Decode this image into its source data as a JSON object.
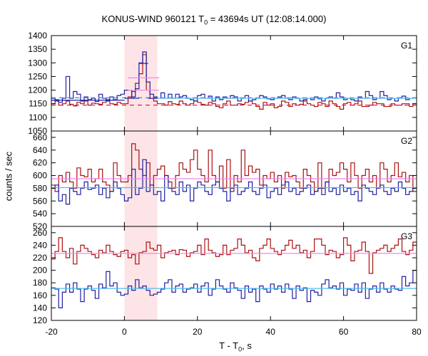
{
  "title": {
    "prefix": "KONUS-WIND 960121 T",
    "sub": "0",
    "suffix": " = 43694s UT (12:08:14.000)"
  },
  "axes": {
    "xlabel": {
      "prefix": "T - T",
      "sub": "0",
      "suffix": ", s"
    },
    "ylabel": "counts / sec"
  },
  "colors": {
    "red_series": "#aa1111",
    "blue_series": "#1f1fa3",
    "red_background": "#dd2255",
    "blue_background": "#3399ee",
    "fit_red": "#ee88ee",
    "fit_blue": "#55bbee",
    "highlight": "#fde4e6"
  },
  "chart_data": [
    {
      "type": "line",
      "panel": "G1",
      "highlight_interval": [
        0,
        9
      ],
      "xlim": [
        -20,
        80
      ],
      "ylim": [
        1050,
        1400
      ],
      "yticks": [
        1050,
        1100,
        1150,
        1200,
        1250,
        1300,
        1350,
        1400
      ],
      "xticks": [
        -20,
        0,
        20,
        40,
        60,
        80
      ],
      "series": [
        {
          "color": "red",
          "step": 1,
          "x_start": -20,
          "values": [
            1150,
            1165,
            1145,
            1150,
            1160,
            1148,
            1142,
            1155,
            1150,
            1160,
            1145,
            1152,
            1150,
            1148,
            1155,
            1165,
            1150,
            1148,
            1155,
            1150,
            1150,
            1175,
            1195,
            1225,
            1260,
            1330,
            1200,
            1170,
            1160,
            1150,
            1150,
            1145,
            1158,
            1150,
            1148,
            1160,
            1150,
            1145,
            1150,
            1160,
            1155,
            1148,
            1145,
            1155,
            1150,
            1140,
            1135,
            1150,
            1160,
            1145,
            1145,
            1150,
            1148,
            1155,
            1160,
            1150,
            1140,
            1130,
            1155,
            1145,
            1150,
            1135,
            1140,
            1160,
            1155,
            1140,
            1150,
            1145,
            1148,
            1160,
            1150,
            1145,
            1140,
            1155,
            1150,
            1140,
            1160,
            1150,
            1140,
            1130,
            1150,
            1155,
            1145,
            1150,
            1160,
            1140,
            1140,
            1145,
            1155,
            1150,
            1150,
            1140,
            1140,
            1150,
            1145,
            1145,
            1150,
            1150,
            1140,
            1150
          ]
        },
        {
          "color": "blue",
          "step": 1,
          "x_start": -20,
          "values": [
            1170,
            1160,
            1155,
            1170,
            1250,
            1170,
            1195,
            1185,
            1160,
            1175,
            1165,
            1170,
            1158,
            1185,
            1170,
            1160,
            1175,
            1165,
            1180,
            1185,
            1200,
            1200,
            1175,
            1205,
            1300,
            1340,
            1230,
            1185,
            1175,
            1170,
            1190,
            1170,
            1185,
            1170,
            1185,
            1175,
            1180,
            1170,
            1165,
            1160,
            1180,
            1185,
            1170,
            1178,
            1160,
            1175,
            1165,
            1175,
            1170,
            1180,
            1175,
            1160,
            1170,
            1180,
            1160,
            1165,
            1170,
            1180,
            1175,
            1168,
            1165,
            1170,
            1175,
            1180,
            1170,
            1165,
            1175,
            1170,
            1160,
            1165,
            1170,
            1165,
            1175,
            1168,
            1160,
            1170,
            1175,
            1170,
            1190,
            1175,
            1165,
            1170,
            1165,
            1160,
            1175,
            1170,
            1195,
            1180,
            1165,
            1170,
            1195,
            1180,
            1165,
            1170,
            1160,
            1172,
            1178,
            1165,
            1170,
            1172
          ]
        }
      ],
      "background_levels": [
        {
          "color": "red",
          "style": "dashed",
          "value": 1145
        },
        {
          "color": "blue",
          "style": "dashed",
          "value": 1172
        }
      ],
      "fits": [
        {
          "color": "blue",
          "style": "solid",
          "x": [
            -20,
            0
          ],
          "value": 1163
        },
        {
          "color": "blue",
          "style": "solid",
          "x": [
            0,
            4
          ],
          "value": 1170
        },
        {
          "color": "blue",
          "style": "solid",
          "x": [
            4,
            6.5
          ],
          "value": 1298
        },
        {
          "color": "blue",
          "style": "solid",
          "x": [
            6.5,
            9
          ],
          "value": 1170
        },
        {
          "color": "fit_red",
          "style": "solid",
          "x": [
            1,
            9.5
          ],
          "value": 1245
        },
        {
          "color": "fit_red",
          "style": "solid",
          "x": [
            1,
            9.5
          ],
          "value": 1200
        },
        {
          "color": "fit_blue",
          "style": "solid",
          "x": [
            9,
            80
          ],
          "value": 1170
        }
      ]
    },
    {
      "type": "line",
      "panel": "G2",
      "highlight_interval": [
        0,
        9
      ],
      "xlim": [
        -20,
        80
      ],
      "ylim": [
        520,
        670
      ],
      "yticks": [
        520,
        540,
        560,
        580,
        600,
        620,
        640,
        660
      ],
      "xticks": [
        -20,
        0,
        20,
        40,
        60,
        80
      ],
      "series": [
        {
          "color": "red",
          "step": 1,
          "x_start": -20,
          "values": [
            585,
            575,
            600,
            590,
            605,
            590,
            580,
            612,
            600,
            598,
            610,
            590,
            595,
            610,
            590,
            585,
            575,
            620,
            600,
            590,
            590,
            600,
            650,
            640,
            610,
            600,
            620,
            585,
            600,
            610,
            615,
            600,
            590,
            580,
            600,
            620,
            610,
            605,
            625,
            640,
            610,
            600,
            590,
            640,
            600,
            590,
            615,
            580,
            625,
            575,
            600,
            590,
            640,
            600,
            615,
            605,
            610,
            585,
            600,
            595,
            605,
            590,
            600,
            580,
            605,
            598,
            600,
            590,
            580,
            610,
            600,
            590,
            575,
            620,
            580,
            590,
            610,
            600,
            605,
            620,
            610,
            590,
            620,
            600,
            580,
            600,
            610,
            590,
            600,
            580,
            620,
            610,
            590,
            600,
            620,
            598,
            605,
            590,
            600,
            575
          ]
        },
        {
          "color": "blue",
          "step": 1,
          "x_start": -20,
          "values": [
            580,
            585,
            560,
            570,
            555,
            580,
            575,
            570,
            580,
            590,
            578,
            580,
            585,
            570,
            580,
            565,
            575,
            590,
            580,
            570,
            560,
            565,
            610,
            570,
            580,
            625,
            575,
            585,
            570,
            575,
            560,
            600,
            580,
            575,
            570,
            590,
            575,
            585,
            560,
            580,
            590,
            585,
            575,
            570,
            585,
            590,
            580,
            575,
            560,
            580,
            585,
            570,
            575,
            580,
            590,
            575,
            570,
            580,
            585,
            565,
            575,
            580,
            570,
            585,
            590,
            575,
            580,
            570,
            575,
            580,
            585,
            570,
            575,
            580,
            570,
            590,
            575,
            580,
            570,
            585,
            575,
            580,
            570,
            575,
            560,
            585,
            580,
            575,
            570,
            580,
            585,
            575,
            570,
            580,
            575,
            590,
            580,
            570,
            575,
            580
          ]
        }
      ],
      "background_levels": [],
      "fits": [
        {
          "color": "fit_red",
          "style": "solid",
          "x": [
            -20,
            80
          ],
          "value": 595
        },
        {
          "color": "fit_blue",
          "style": "solid",
          "x": [
            -20,
            80
          ],
          "value": 581
        }
      ]
    },
    {
      "type": "line",
      "panel": "G3",
      "highlight_interval": [
        0,
        9
      ],
      "xlim": [
        -20,
        80
      ],
      "ylim": [
        120,
        270
      ],
      "yticks": [
        120,
        140,
        160,
        180,
        200,
        220,
        240,
        260
      ],
      "xticks": [
        -20,
        0,
        20,
        40,
        60,
        80
      ],
      "series": [
        {
          "color": "red",
          "step": 1,
          "x_start": -20,
          "values": [
            218,
            230,
            252,
            230,
            220,
            235,
            210,
            230,
            240,
            235,
            230,
            225,
            220,
            232,
            228,
            240,
            230,
            225,
            222,
            230,
            232,
            220,
            225,
            210,
            228,
            230,
            245,
            235,
            232,
            240,
            220,
            228,
            230,
            232,
            225,
            233,
            232,
            222,
            228,
            230,
            240,
            225,
            250,
            232,
            228,
            222,
            225,
            240,
            225,
            232,
            235,
            250,
            240,
            228,
            232,
            220,
            215,
            235,
            240,
            250,
            235,
            230,
            225,
            232,
            240,
            248,
            235,
            240,
            228,
            232,
            220,
            230,
            250,
            250,
            240,
            225,
            232,
            230,
            220,
            225,
            252,
            240,
            215,
            230,
            232,
            245,
            230,
            195,
            228,
            232,
            235,
            240,
            230,
            235,
            240,
            250,
            230,
            225,
            232,
            245
          ]
        },
        {
          "color": "blue",
          "step": 1,
          "x_start": -20,
          "values": [
            172,
            170,
            140,
            165,
            178,
            165,
            180,
            170,
            150,
            170,
            175,
            168,
            155,
            178,
            172,
            198,
            175,
            180,
            165,
            160,
            162,
            175,
            168,
            185,
            172,
            175,
            168,
            160,
            162,
            165,
            170,
            180,
            185,
            165,
            175,
            178,
            165,
            170,
            172,
            178,
            165,
            175,
            180,
            160,
            170,
            185,
            175,
            170,
            165,
            180,
            172,
            168,
            155,
            175,
            165,
            170,
            150,
            175,
            170,
            165,
            178,
            170,
            175,
            165,
            178,
            170,
            155,
            175,
            168,
            172,
            150,
            168,
            165,
            160,
            178,
            185,
            172,
            175,
            170,
            180,
            160,
            170,
            168,
            178,
            165,
            180,
            155,
            170,
            175,
            165,
            180,
            170,
            165,
            175,
            170,
            168,
            190,
            175,
            180,
            200
          ]
        }
      ],
      "background_levels": [],
      "fits": [
        {
          "color": "fit_red",
          "style": "solid",
          "x": [
            -20,
            80
          ],
          "value": 227
        },
        {
          "color": "fit_blue",
          "style": "solid",
          "x": [
            -20,
            80
          ],
          "value": 171
        }
      ]
    }
  ],
  "panel_labels": [
    "G1",
    "G2",
    "G3"
  ]
}
